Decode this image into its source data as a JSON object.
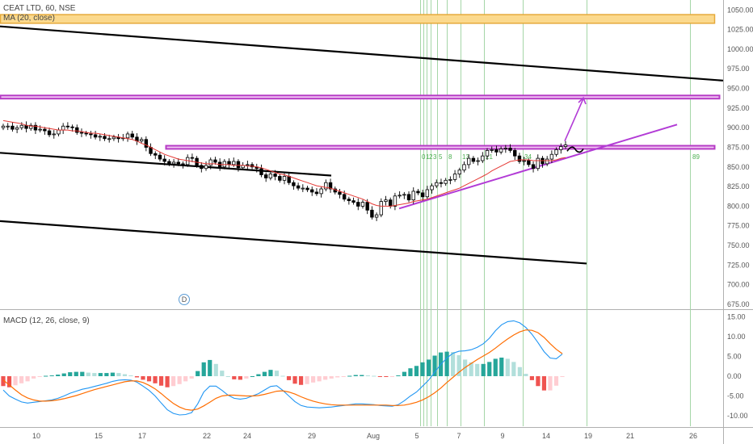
{
  "header": {
    "symbol": "CEAT LTD, 60, NSE",
    "ma_label": "MA (20, close)",
    "macd_label": "MACD (12, 26, close, 9)",
    "dividend_marker": "D"
  },
  "colors": {
    "up": "#333333",
    "down": "#000000",
    "ma": "#e53935",
    "macd": "#2196f3",
    "signal": "#ff6d00",
    "hist_pos_strong": "#26a69a",
    "hist_pos_weak": "#b2dfdb",
    "hist_neg_strong": "#ef5350",
    "hist_neg_weak": "#ffcdd2",
    "zone_fill": "#fbd98d",
    "zone_stroke": "#e6a93a",
    "pink_fill": "#f1c6f3",
    "pink_stroke": "#b63bc6",
    "trend": "#000000",
    "purple": "#b23bd6",
    "fib_line": "#a5d6a7"
  },
  "chart_data": {
    "type": "candlestick",
    "title": "CEAT LTD, 60, NSE",
    "price_axis": {
      "ticks": [
        "1050.00",
        "1025.00",
        "1000.00",
        "975.00",
        "950.00",
        "925.00",
        "900.00",
        "875.00",
        "850.00",
        "825.00",
        "800.00",
        "775.00",
        "750.00",
        "725.00",
        "700.00",
        "675.00"
      ],
      "range": [
        670,
        1060
      ]
    },
    "macd_axis": {
      "ticks": [
        "15.00",
        "10.00",
        "5.00",
        "0.00",
        "-5.00",
        "-10.00"
      ],
      "range": [
        -12,
        17
      ]
    },
    "x_axis": {
      "labels": [
        "10",
        "15",
        "17",
        "22",
        "24",
        "29",
        "Aug",
        "5",
        "7",
        "9",
        "14",
        "19",
        "21",
        "26"
      ]
    },
    "fib_time_labels": [
      "0",
      "1",
      "2",
      "3",
      "5",
      "8",
      "13",
      "21",
      "34",
      "89"
    ],
    "price_series": [
      902,
      902,
      898,
      900,
      903,
      899,
      903,
      897,
      898,
      896,
      891,
      892,
      897,
      902,
      901,
      900,
      894,
      893,
      892,
      891,
      888,
      889,
      886,
      886,
      888,
      886,
      887,
      892,
      888,
      883,
      885,
      875,
      867,
      865,
      860,
      857,
      854,
      856,
      854,
      853,
      862,
      861,
      852,
      848,
      852,
      859,
      856,
      850,
      857,
      853,
      857,
      849,
      852,
      853,
      850,
      848,
      840,
      836,
      841,
      838,
      833,
      838,
      830,
      826,
      823,
      823,
      821,
      818,
      816,
      822,
      830,
      822,
      818,
      815,
      809,
      807,
      805,
      800,
      805,
      795,
      786,
      789,
      806,
      808,
      800,
      813,
      814,
      815,
      808,
      819,
      817,
      812,
      821,
      826,
      830,
      829,
      833,
      834,
      841,
      846,
      853,
      861,
      857,
      858,
      864,
      871,
      872,
      869,
      873,
      874,
      871,
      864,
      857,
      858,
      853,
      848,
      861,
      854,
      860,
      866,
      872,
      876,
      878
    ],
    "ma_series": [
      909,
      908,
      907,
      906,
      905,
      903,
      902,
      902,
      901,
      900,
      899,
      898,
      897,
      897,
      897,
      896,
      896,
      895,
      894,
      893,
      893,
      892,
      891,
      890,
      889,
      888,
      887,
      886,
      885,
      883,
      880,
      878,
      875,
      872,
      869,
      866,
      864,
      862,
      860,
      859,
      858,
      857,
      856,
      855,
      854,
      854,
      854,
      853,
      853,
      853,
      852,
      852,
      852,
      851,
      851,
      850,
      849,
      847,
      845,
      843,
      841,
      840,
      838,
      836,
      834,
      832,
      830,
      828,
      826,
      825,
      824,
      823,
      821,
      819,
      817,
      815,
      813,
      811,
      809,
      806,
      803,
      801,
      800,
      800,
      800,
      801,
      802,
      803,
      804,
      806,
      807,
      808,
      809,
      811,
      813,
      815,
      817,
      819,
      821,
      823,
      826,
      829,
      832,
      835,
      838,
      841,
      845,
      848,
      851,
      854,
      857,
      858,
      859,
      859,
      859,
      858,
      858,
      858,
      858,
      858,
      859,
      861,
      862
    ],
    "macd_series": [
      -3.5,
      -5.0,
      -5.8,
      -6.5,
      -6.8,
      -6.6,
      -6.4,
      -6.2,
      -6.0,
      -5.6,
      -5.0,
      -4.3,
      -3.8,
      -3.3,
      -3.0,
      -2.6,
      -2.2,
      -1.8,
      -1.3,
      -1.0,
      -0.9,
      -1.0,
      -1.5,
      -2.5,
      -3.6,
      -5.0,
      -6.8,
      -8.5,
      -9.4,
      -9.8,
      -9.7,
      -9.2,
      -7.0,
      -4.0,
      -2.5,
      -2.5,
      -3.6,
      -4.8,
      -5.6,
      -5.8,
      -5.6,
      -5.0,
      -4.4,
      -3.5,
      -2.6,
      -2.4,
      -3.6,
      -5.0,
      -6.4,
      -7.4,
      -7.8,
      -7.9,
      -8.0,
      -7.9,
      -7.8,
      -7.6,
      -7.4,
      -7.2,
      -7.0,
      -7.0,
      -7.1,
      -7.2,
      -7.4,
      -7.5,
      -7.6,
      -7.2,
      -6.2,
      -5.0,
      -4.0,
      -2.5,
      -1.0,
      1.0,
      3.0,
      4.6,
      5.8,
      6.3,
      6.4,
      6.7,
      7.3,
      8.2,
      9.6,
      11.5,
      13.0,
      13.8,
      14.0,
      13.5,
      12.3,
      10.6,
      8.5,
      6.2,
      4.6,
      4.4,
      5.6
    ],
    "signal_series": [
      -1.0,
      -2.2,
      -3.5,
      -4.7,
      -5.5,
      -6.0,
      -6.3,
      -6.3,
      -6.2,
      -6.0,
      -5.7,
      -5.3,
      -4.9,
      -4.4,
      -3.9,
      -3.4,
      -3.0,
      -2.6,
      -2.2,
      -1.8,
      -1.4,
      -1.2,
      -1.2,
      -1.6,
      -2.3,
      -3.2,
      -4.4,
      -5.7,
      -6.9,
      -7.8,
      -8.4,
      -8.6,
      -8.3,
      -7.5,
      -6.6,
      -5.6,
      -5.0,
      -4.8,
      -4.8,
      -4.9,
      -5.0,
      -5.0,
      -4.9,
      -4.6,
      -4.2,
      -3.8,
      -3.7,
      -4.0,
      -4.5,
      -5.2,
      -5.8,
      -6.3,
      -6.7,
      -7.0,
      -7.2,
      -7.3,
      -7.3,
      -7.3,
      -7.3,
      -7.3,
      -7.3,
      -7.3,
      -7.3,
      -7.3,
      -7.4,
      -7.4,
      -7.3,
      -7.0,
      -6.6,
      -6.0,
      -5.2,
      -4.2,
      -3.0,
      -1.6,
      -0.3,
      1.0,
      2.2,
      3.2,
      4.2,
      5.1,
      6.0,
      7.1,
      8.3,
      9.4,
      10.4,
      11.2,
      11.7,
      11.6,
      11.0,
      9.8,
      8.2,
      6.8,
      5.7
    ]
  }
}
